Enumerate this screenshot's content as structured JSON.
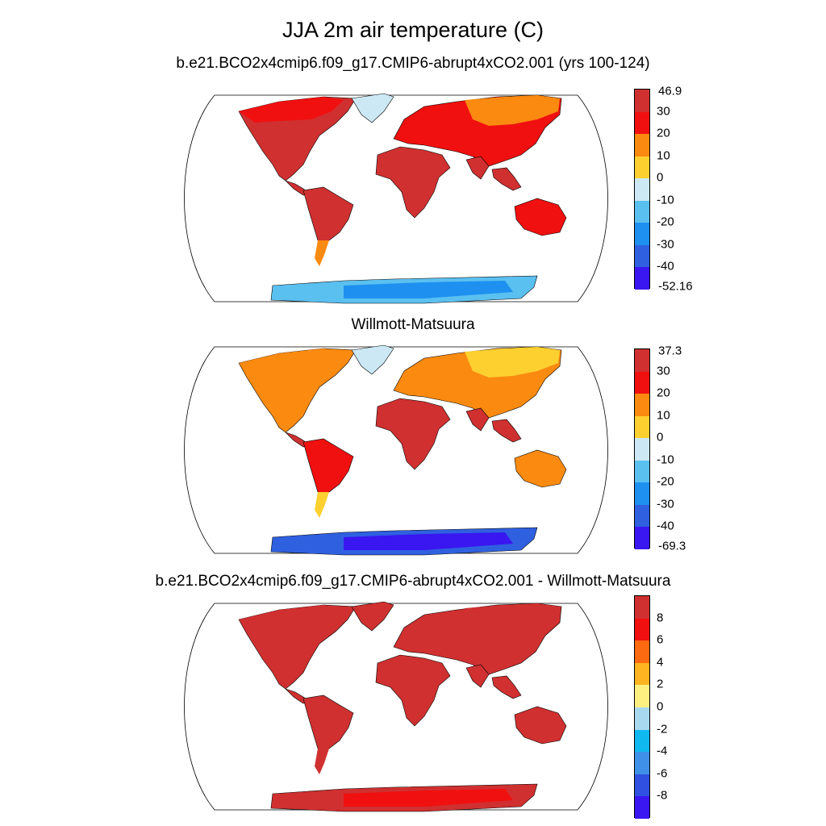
{
  "title": "JJA 2m air temperature (C)",
  "panels": [
    {
      "title": "b.e21.BCO2x4cmip6.f09_g17.CMIP6-abrupt4xCO2.001 (yrs 100-124)",
      "colorbar": {
        "labels": [
          "46.9",
          "30",
          "20",
          "10",
          "0",
          "-10",
          "-20",
          "-30",
          "-40",
          "-52.16"
        ],
        "colors": [
          "#d03030",
          "#f01010",
          "#fb8a10",
          "#fdd030",
          "#cce8f4",
          "#5ac0f0",
          "#1e90f0",
          "#2f60e0",
          "#3a16f0"
        ],
        "label_mode": "edges"
      },
      "fills": {
        "north_america": "#d03030",
        "north_america_high": "#f01010",
        "greenland": "#cce8f4",
        "south_america": "#d03030",
        "patagonia": "#fb8a10",
        "africa": "#d03030",
        "eurasia": "#f01010",
        "siberia": "#fb8a10",
        "india": "#d03030",
        "australia": "#f01010",
        "antarctica": "#5ac0f0",
        "antarctica_core": "#1e90f0"
      }
    },
    {
      "title": "Willmott-Matsuura",
      "colorbar": {
        "labels": [
          "37.3",
          "30",
          "20",
          "10",
          "0",
          "-10",
          "-20",
          "-30",
          "-40",
          "-69.3"
        ],
        "colors": [
          "#d03030",
          "#f01010",
          "#fb8a10",
          "#fdd030",
          "#cce8f4",
          "#5ac0f0",
          "#1e90f0",
          "#2f60e0",
          "#3a16f0"
        ],
        "label_mode": "edges"
      },
      "fills": {
        "north_america": "#fb8a10",
        "north_america_high": "#fb8a10",
        "greenland": "#cce8f4",
        "south_america": "#f01010",
        "patagonia": "#fdd030",
        "africa": "#d03030",
        "eurasia": "#fb8a10",
        "siberia": "#fdd030",
        "india": "#d03030",
        "australia": "#fb8a10",
        "antarctica": "#2f60e0",
        "antarctica_core": "#3a16f0"
      }
    },
    {
      "title": "b.e21.BCO2x4cmip6.f09_g17.CMIP6-abrupt4xCO2.001 - Willmott-Matsuura",
      "colorbar": {
        "labels": [
          "8",
          "6",
          "4",
          "2",
          "0",
          "-2",
          "-4",
          "-6",
          "-8"
        ],
        "colors": [
          "#d03030",
          "#f01010",
          "#fb6a10",
          "#fdb420",
          "#fef080",
          "#a8d8f0",
          "#10b8f0",
          "#3f90e8",
          "#2f50e0",
          "#3a16f0"
        ],
        "label_mode": "interior"
      },
      "fills": {
        "north_america": "#d03030",
        "north_america_high": "#d03030",
        "greenland": "#d03030",
        "south_america": "#d03030",
        "patagonia": "#d03030",
        "africa": "#d03030",
        "eurasia": "#d03030",
        "siberia": "#d03030",
        "india": "#d03030",
        "australia": "#d03030",
        "antarctica": "#d03030",
        "antarctica_core": "#f01010"
      }
    }
  ]
}
